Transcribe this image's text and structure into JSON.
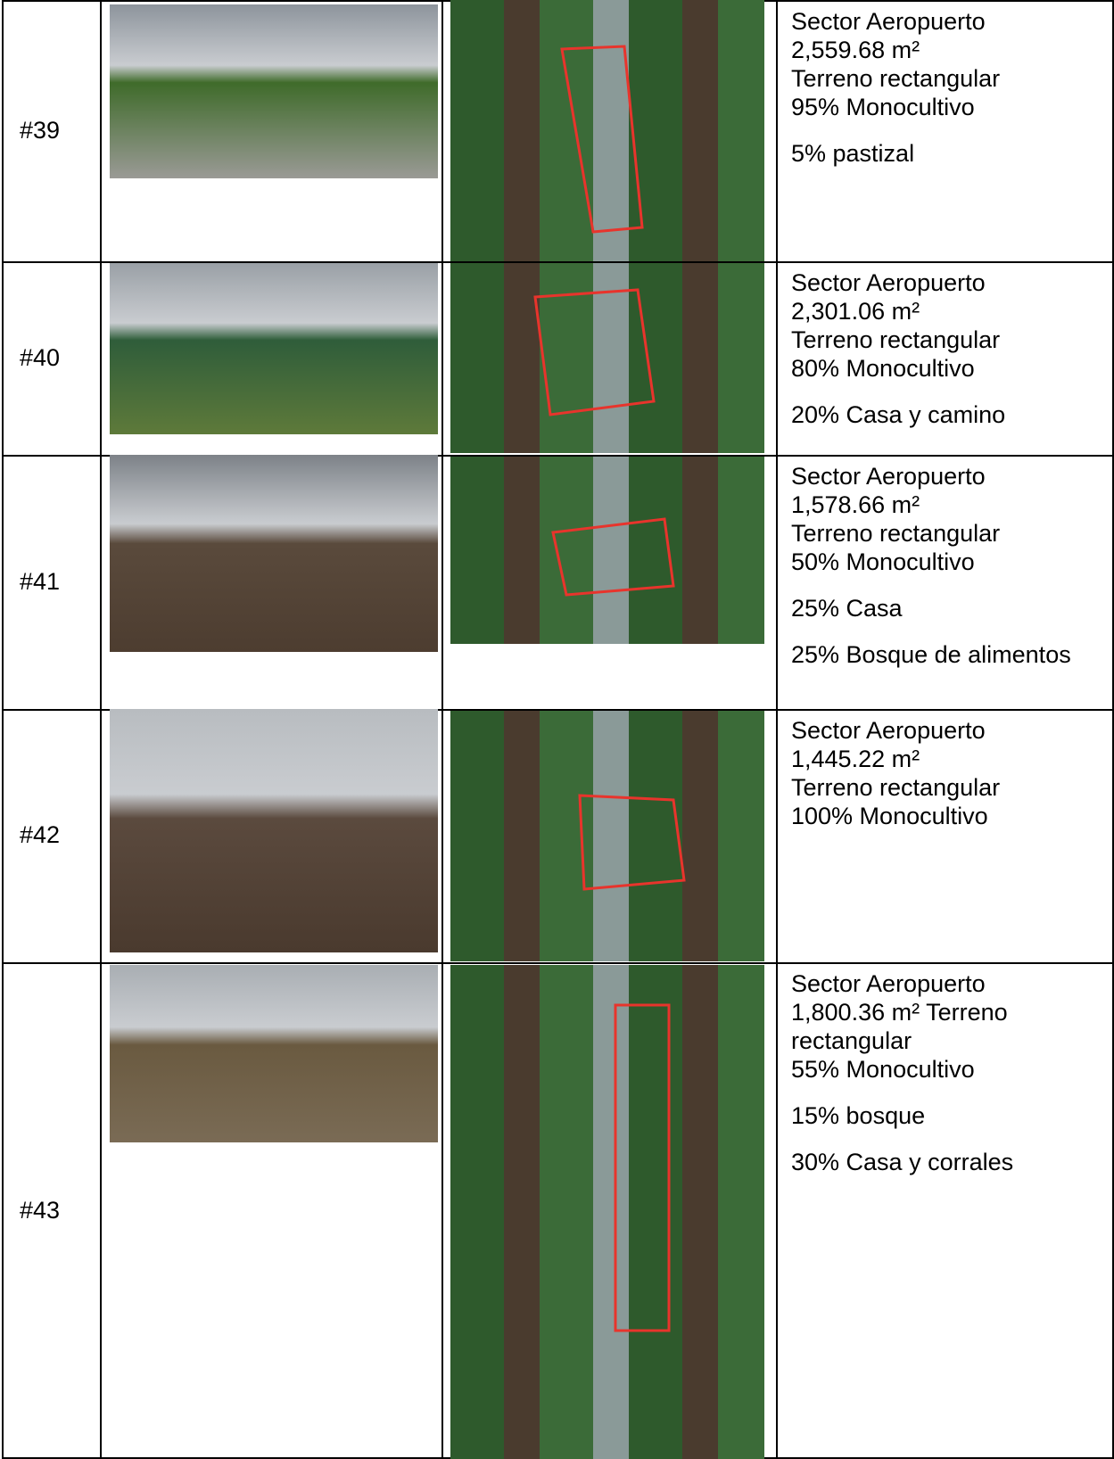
{
  "table": {
    "rows": [
      {
        "id": "#39",
        "description": [
          "Sector Aeropuerto",
          "2,559.68 m²",
          "Terreno rectangular",
          "95% Monocultivo"
        ],
        "extra": [
          "5% pastizal"
        ]
      },
      {
        "id": "#40",
        "description": [
          "Sector Aeropuerto",
          "2,301.06 m²",
          "Terreno rectangular",
          "80% Monocultivo"
        ],
        "extra": [
          "20% Casa y camino"
        ]
      },
      {
        "id": "#41",
        "description": [
          "Sector Aeropuerto",
          "1,578.66 m²",
          "Terreno rectangular",
          "50% Monocultivo"
        ],
        "extra": [
          "25% Casa",
          "25% Bosque de alimentos"
        ]
      },
      {
        "id": "#42",
        "description": [
          "Sector Aeropuerto",
          "1,445.22 m²",
          "Terreno rectangular",
          "100% Monocultivo"
        ],
        "extra": []
      },
      {
        "id": "#43",
        "description": [
          "Sector Aeropuerto",
          "1,800.36 m² Terreno rectangular",
          "55% Monocultivo"
        ],
        "extra": [
          "15% bosque",
          "30% Casa y corrales"
        ]
      }
    ]
  }
}
